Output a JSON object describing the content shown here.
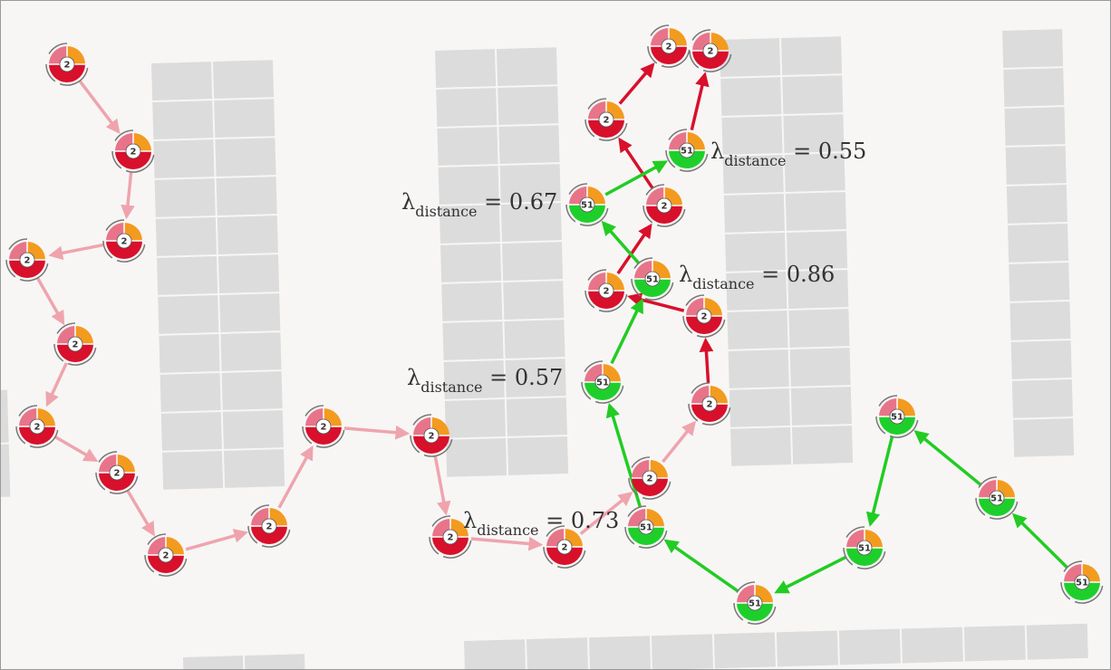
{
  "colors": {
    "background": "#f7f6f5",
    "parking_block": "#dcdcdc",
    "pink_vehicle": "#e8748a",
    "red_vehicle": "#d8102b",
    "green_vehicle": "#1ecf2c",
    "orange_quadrant": "#f39b1f",
    "pink_path": "#efa4ad",
    "red_path": "#d8102b",
    "green_path": "#22cc22"
  },
  "annotations": [
    {
      "symbol": "λ",
      "subscript": "distance",
      "value": "= 0.67"
    },
    {
      "symbol": "λ",
      "subscript": "distance",
      "value": "= 0.55"
    },
    {
      "symbol": "λ",
      "subscript": "distance",
      "value": "= 0.86"
    },
    {
      "symbol": "λ",
      "subscript": "distance",
      "value": "= 0.57"
    },
    {
      "symbol": "λ",
      "subscript": "distance",
      "value": "= 0.73"
    }
  ],
  "vehicle_ids": {
    "red_fleet": "2",
    "green_fleet": "51"
  },
  "paths": [
    {
      "color": "pink",
      "nodes": [
        "2",
        "2",
        "2",
        "2",
        "2",
        "2",
        "2",
        "2",
        "2",
        "2",
        "2",
        "2",
        "2",
        "2",
        "2"
      ]
    },
    {
      "color": "red",
      "nodes": [
        "2",
        "2",
        "2",
        "2",
        "2",
        "2"
      ]
    },
    {
      "color": "red",
      "nodes": [
        "2",
        "51"
      ]
    },
    {
      "color": "green",
      "nodes": [
        "51",
        "51",
        "51",
        "51",
        "51",
        "51",
        "51",
        "51",
        "51",
        "51"
      ]
    }
  ]
}
